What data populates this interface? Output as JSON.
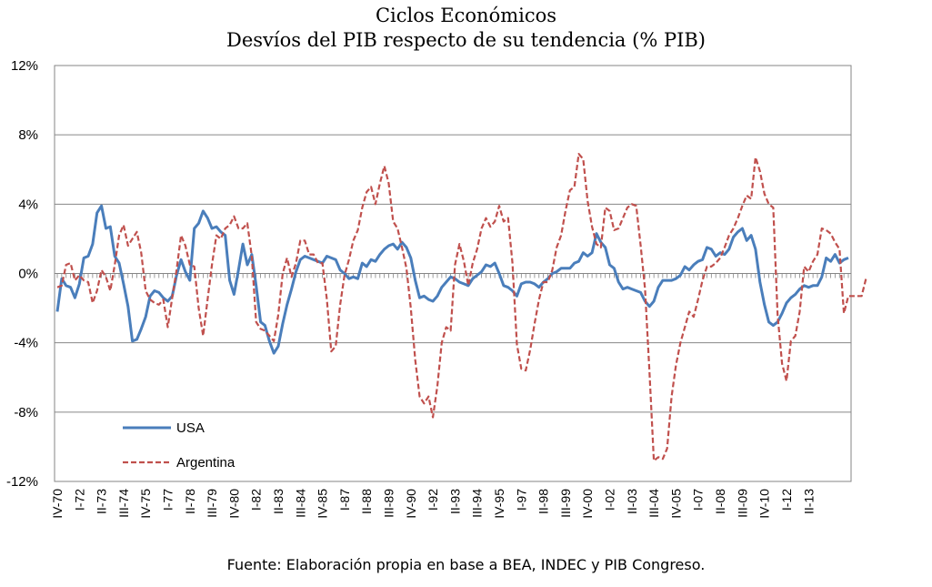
{
  "title": "Ciclos Económicos",
  "subtitle": "Desvíos del PIB respecto de su tendencia (% PIB)",
  "source": "Fuente: Elaboración propia en base a BEA, INDEC y PIB Congreso.",
  "chart_data": {
    "type": "line",
    "x_start": "IV-70",
    "x_end": "II-13",
    "xticks": [
      "IV-70",
      "I-72",
      "II-73",
      "III-74",
      "IV-75",
      "I-77",
      "II-78",
      "III-79",
      "IV-80",
      "I-82",
      "II-83",
      "III-84",
      "IV-85",
      "I-87",
      "II-88",
      "III-89",
      "IV-90",
      "I-92",
      "II-93",
      "III-94",
      "IV-95",
      "I-97",
      "II-98",
      "III-99",
      "IV-00",
      "I-02",
      "II-03",
      "III-04",
      "IV-05",
      "I-07",
      "II-08",
      "III-09",
      "IV-10",
      "I-12",
      "II-13"
    ],
    "yticks": [
      "12%",
      "8%",
      "4%",
      "0%",
      "-4%",
      "-8%",
      "-12%"
    ],
    "ylim": [
      -12,
      12
    ],
    "grid": true,
    "legend_position": "bottom-left",
    "series": [
      {
        "name": "USA",
        "color": "#4a7ebb",
        "dash": false,
        "values": [
          -2.2,
          -0.3,
          -0.7,
          -0.8,
          -1.4,
          -0.6,
          0.9,
          1.0,
          1.7,
          3.5,
          3.9,
          2.6,
          2.7,
          1.0,
          0.6,
          -0.6,
          -1.9,
          -3.9,
          -3.8,
          -3.2,
          -2.5,
          -1.3,
          -1.0,
          -1.1,
          -1.4,
          -1.6,
          -1.3,
          -0.1,
          0.8,
          0.1,
          -0.4,
          2.6,
          2.9,
          3.6,
          3.2,
          2.6,
          2.7,
          2.4,
          2.2,
          -0.4,
          -1.2,
          0.2,
          1.7,
          0.5,
          1.1,
          -0.7,
          -2.8,
          -3.0,
          -3.9,
          -4.6,
          -4.2,
          -2.9,
          -1.8,
          -0.9,
          0.1,
          0.8,
          1.0,
          0.9,
          0.8,
          0.7,
          0.6,
          1.0,
          0.9,
          0.8,
          0.2,
          0.0,
          -0.3,
          -0.2,
          -0.3,
          0.6,
          0.4,
          0.8,
          0.7,
          1.1,
          1.4,
          1.6,
          1.7,
          1.4,
          1.8,
          1.5,
          0.9,
          -0.4,
          -1.4,
          -1.3,
          -1.5,
          -1.6,
          -1.3,
          -0.8,
          -0.5,
          -0.2,
          -0.3,
          -0.5,
          -0.6,
          -0.7,
          -0.3,
          -0.1,
          0.1,
          0.5,
          0.4,
          0.6,
          0.0,
          -0.7,
          -0.8,
          -1.0,
          -1.3,
          -0.6,
          -0.5,
          -0.5,
          -0.6,
          -0.8,
          -0.5,
          -0.3,
          0.0,
          0.1,
          0.3,
          0.3,
          0.3,
          0.6,
          0.7,
          1.2,
          1.0,
          1.2,
          2.3,
          1.8,
          1.5,
          0.5,
          0.3,
          -0.5,
          -0.9,
          -0.8,
          -0.9,
          -1.0,
          -1.1,
          -1.6,
          -1.9,
          -1.6,
          -0.8,
          -0.4,
          -0.4,
          -0.4,
          -0.3,
          -0.1,
          0.4,
          0.2,
          0.5,
          0.7,
          0.8,
          1.5,
          1.4,
          1.0,
          1.2,
          1.1,
          1.4,
          2.1,
          2.4,
          2.6,
          1.9,
          2.2,
          1.4,
          -0.5,
          -1.8,
          -2.8,
          -3.0,
          -2.8,
          -2.3,
          -1.7,
          -1.4,
          -1.2,
          -0.9,
          -0.7,
          -0.8,
          -0.7,
          -0.7,
          -0.2,
          0.9,
          0.7,
          1.1,
          0.6,
          0.8,
          0.9
        ]
      },
      {
        "name": "Argentina",
        "color": "#c0504d",
        "dash": true,
        "values": [
          -0.8,
          -0.7,
          0.5,
          0.6,
          -0.4,
          -0.1,
          -0.4,
          -0.5,
          -1.7,
          -1.0,
          0.2,
          -0.2,
          -1.0,
          0.5,
          2.2,
          2.8,
          1.6,
          2.0,
          2.4,
          1.2,
          -1.0,
          -1.5,
          -1.7,
          -1.8,
          -1.5,
          -3.1,
          -1.4,
          0.2,
          2.2,
          1.6,
          0.5,
          0.4,
          -2.0,
          -3.6,
          -1.5,
          0.5,
          2.2,
          2.0,
          2.6,
          2.8,
          3.3,
          2.6,
          2.6,
          2.9,
          1.0,
          -2.8,
          -3.2,
          -3.3,
          -3.6,
          -3.9,
          -2.4,
          0.0,
          0.9,
          -0.2,
          0.6,
          1.9,
          1.9,
          1.1,
          1.1,
          0.6,
          0.6,
          -1.5,
          -4.5,
          -4.2,
          -1.8,
          -0.1,
          0.8,
          1.9,
          2.5,
          3.8,
          4.7,
          5.0,
          4.0,
          5.2,
          6.2,
          5.2,
          3.0,
          2.6,
          1.5,
          0.3,
          -2.0,
          -5.0,
          -7.1,
          -7.5,
          -7.1,
          -8.3,
          -6.5,
          -4.0,
          -3.1,
          -3.3,
          0.5,
          1.7,
          0.7,
          -0.7,
          0.6,
          1.4,
          2.6,
          3.2,
          2.7,
          3.0,
          3.9,
          3.0,
          3.2,
          0.6,
          -4.1,
          -5.5,
          -5.6,
          -4.4,
          -2.9,
          -1.5,
          -0.5,
          -0.5,
          0.2,
          1.5,
          2.2,
          3.6,
          4.8,
          5.0,
          6.9,
          6.6,
          4.2,
          2.7,
          1.7,
          1.5,
          3.8,
          3.6,
          2.5,
          2.6,
          3.2,
          3.8,
          4.0,
          3.9,
          1.6,
          -0.9,
          -5.7,
          -10.8,
          -10.6,
          -10.7,
          -10.1,
          -7.1,
          -5.3,
          -4.0,
          -3.1,
          -2.2,
          -2.5,
          -1.5,
          -0.4,
          0.4,
          0.4,
          0.6,
          0.9,
          1.5,
          2.2,
          2.6,
          3.2,
          3.9,
          4.5,
          4.3,
          6.7,
          5.9,
          4.6,
          4.0,
          3.8,
          -2.4,
          -5.2,
          -6.2,
          -3.9,
          -3.6,
          -2.2,
          0.4,
          0.1,
          0.7,
          1.1,
          2.6,
          2.5,
          2.3,
          1.8,
          1.4,
          -2.3,
          -1.3,
          -1.3,
          -1.3,
          -1.3,
          -0.3
        ]
      }
    ]
  }
}
